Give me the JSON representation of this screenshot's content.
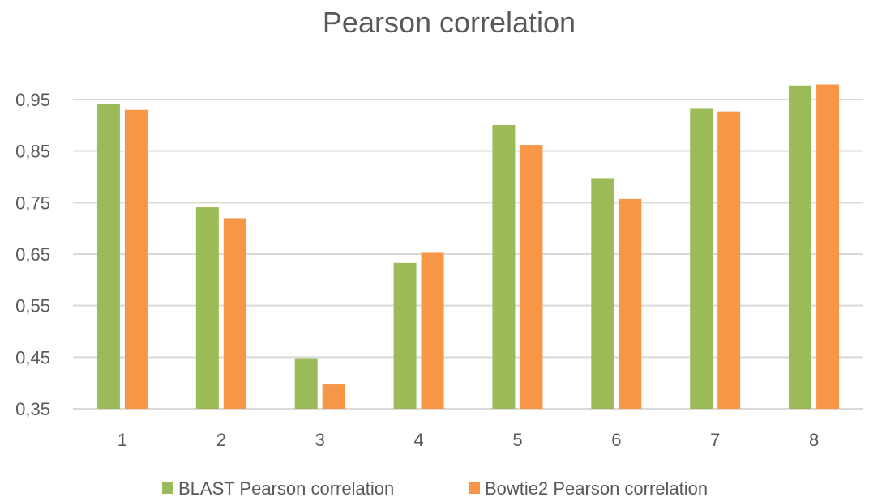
{
  "chart_data": {
    "type": "bar",
    "title": "Pearson correlation",
    "categories": [
      "1",
      "2",
      "3",
      "4",
      "5",
      "6",
      "7",
      "8"
    ],
    "series": [
      {
        "name": "BLAST Pearson correlation",
        "color": "#9BBB59",
        "values": [
          0.942,
          0.741,
          0.448,
          0.633,
          0.9,
          0.797,
          0.932,
          0.977
        ]
      },
      {
        "name": "Bowtie2 Pearson correlation",
        "color": "#F79646",
        "values": [
          0.93,
          0.72,
          0.397,
          0.654,
          0.862,
          0.757,
          0.927,
          0.979
        ]
      }
    ],
    "y_ticks": [
      "0,35",
      "0,45",
      "0,55",
      "0,65",
      "0,75",
      "0,85",
      "0,95"
    ],
    "ylim": [
      0.35,
      1.0
    ],
    "grid": true,
    "legend_position": "bottom"
  }
}
